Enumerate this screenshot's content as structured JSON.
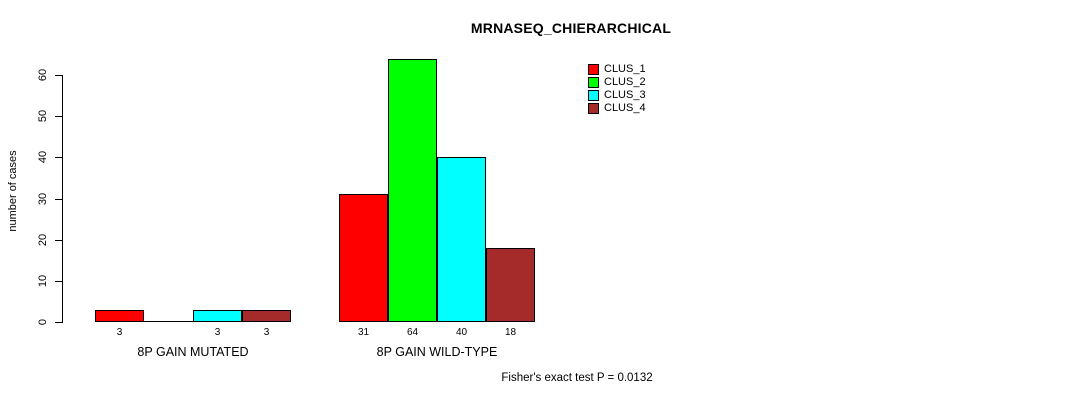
{
  "chart_data": {
    "type": "bar",
    "title": "MRNASEQ_CHIERARCHICAL",
    "ylabel": "number of cases",
    "xlabel": "",
    "yticks": [
      0,
      10,
      20,
      30,
      40,
      50,
      60
    ],
    "ylim": [
      0,
      66
    ],
    "grid": false,
    "legend_position": "top-right",
    "background": "#ffffff",
    "axis_color": "#000000",
    "categories": [
      "8P GAIN MUTATED",
      "8P GAIN WILD-TYPE"
    ],
    "series": [
      {
        "name": "CLUS_1",
        "color": "#ff0000",
        "values": [
          3,
          31
        ]
      },
      {
        "name": "CLUS_2",
        "color": "#00ff00",
        "values": [
          0,
          64
        ]
      },
      {
        "name": "CLUS_3",
        "color": "#00ffff",
        "values": [
          3,
          40
        ]
      },
      {
        "name": "CLUS_4",
        "color": "#a52a2a",
        "values": [
          3,
          18
        ]
      }
    ],
    "bar_labels": [
      [
        "3",
        "",
        "3",
        "3"
      ],
      [
        "31",
        "64",
        "40",
        "18"
      ]
    ],
    "footnote": "Fisher's exact test P = 0.0132"
  }
}
